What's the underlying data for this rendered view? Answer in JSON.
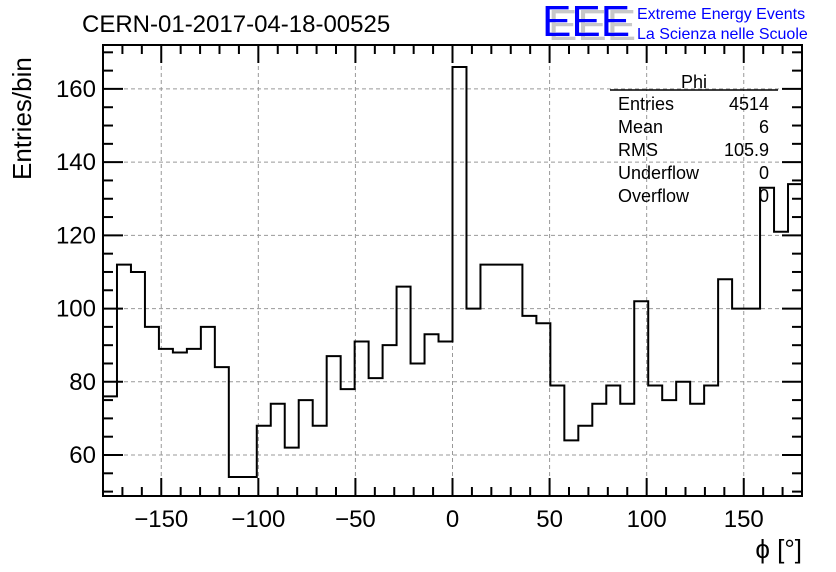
{
  "chart_data": {
    "type": "bar",
    "style": "step-histogram",
    "title": "CERN-01-2017-04-18-00525",
    "xlabel": "ϕ [°]",
    "ylabel": "Entries/bin",
    "xlim": [
      -180,
      180
    ],
    "ylim": [
      48.8,
      172
    ],
    "bin_width": 7.2,
    "grid": true,
    "xticks": [
      -150,
      -100,
      -50,
      0,
      50,
      100,
      150
    ],
    "xtick_labels": [
      "−150",
      "−100",
      "−50",
      "0",
      "50",
      "100",
      "150"
    ],
    "yticks": [
      60,
      80,
      100,
      120,
      140,
      160
    ],
    "ytick_labels": [
      "60",
      "80",
      "100",
      "120",
      "140",
      "160"
    ],
    "values": [
      76,
      112,
      110,
      95,
      89,
      88,
      89,
      95,
      84,
      54,
      54,
      68,
      74,
      62,
      75,
      68,
      87,
      78,
      91,
      81,
      90,
      106,
      85,
      93,
      91,
      166,
      100,
      112,
      112,
      112,
      98,
      96,
      79,
      64,
      68,
      74,
      79,
      74,
      102,
      79,
      75,
      80,
      74,
      79,
      108,
      100,
      100,
      133,
      121,
      134
    ],
    "line_color": "#000000",
    "stats_box": {
      "title": "Phi",
      "placement": "top-right",
      "rows": [
        {
          "label": "Entries",
          "value": "4514"
        },
        {
          "label": "Mean",
          "value": "6"
        },
        {
          "label": "RMS",
          "value": "105.9"
        },
        {
          "label": "Underflow",
          "value": "0"
        },
        {
          "label": "Overflow",
          "value": "0"
        }
      ]
    }
  },
  "logo": {
    "mark": "EEE",
    "line1": "Extreme Energy Events",
    "line2": "La Scienza nelle Scuole",
    "color": "#0000ff"
  }
}
